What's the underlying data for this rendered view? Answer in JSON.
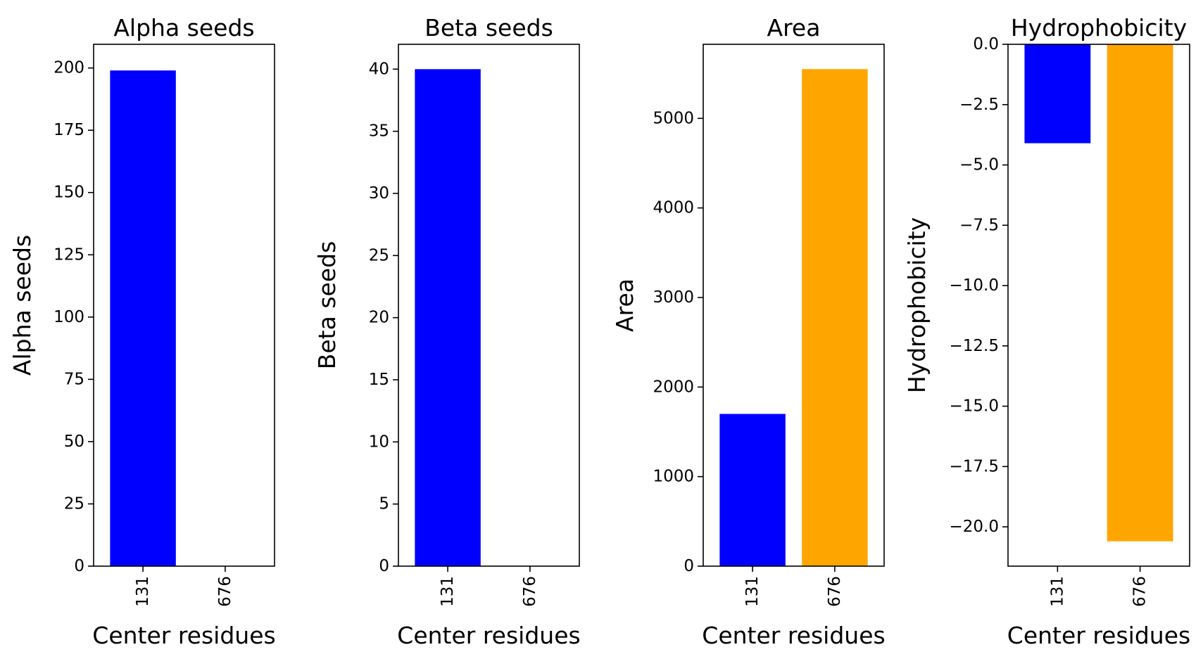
{
  "colors": {
    "131": "#0000ff",
    "676": "#ffa500"
  },
  "chart_data": [
    {
      "type": "bar",
      "title": "Alpha seeds",
      "xlabel": "Center residues",
      "ylabel": "Alpha seeds",
      "categories": [
        "131",
        "676"
      ],
      "values": [
        199,
        0
      ],
      "ylim": [
        0,
        209.5
      ],
      "yticks": [
        0,
        25,
        50,
        75,
        100,
        125,
        150,
        175,
        200
      ],
      "ytick_labels": [
        "0",
        "25",
        "50",
        "75",
        "100",
        "125",
        "150",
        "175",
        "200"
      ],
      "grid": false
    },
    {
      "type": "bar",
      "title": "Beta seeds",
      "xlabel": "Center residues",
      "ylabel": "Beta seeds",
      "categories": [
        "131",
        "676"
      ],
      "values": [
        40,
        0
      ],
      "ylim": [
        0,
        42
      ],
      "yticks": [
        0,
        5,
        10,
        15,
        20,
        25,
        30,
        35,
        40
      ],
      "ytick_labels": [
        "0",
        "5",
        "10",
        "15",
        "20",
        "25",
        "30",
        "35",
        "40"
      ],
      "grid": false
    },
    {
      "type": "bar",
      "title": "Area",
      "xlabel": "Center residues",
      "ylabel": "Area",
      "categories": [
        "131",
        "676"
      ],
      "values": [
        1700,
        5550
      ],
      "ylim": [
        0,
        5827
      ],
      "yticks": [
        0,
        1000,
        2000,
        3000,
        4000,
        5000
      ],
      "ytick_labels": [
        "0",
        "1000",
        "2000",
        "3000",
        "4000",
        "5000"
      ],
      "grid": false
    },
    {
      "type": "bar",
      "title": "Hydrophobicity",
      "xlabel": "Center residues",
      "ylabel": "Hydrophobicity",
      "categories": [
        "131",
        "676"
      ],
      "values": [
        -4.1,
        -20.6
      ],
      "ylim": [
        -21.63,
        0
      ],
      "yticks": [
        0,
        -2.5,
        -5,
        -7.5,
        -10,
        -12.5,
        -15,
        -17.5,
        -20
      ],
      "ytick_labels": [
        "0.0",
        "−2.5",
        "−5.0",
        "−7.5",
        "−10.0",
        "−12.5",
        "−15.0",
        "−17.5",
        "−20.0"
      ],
      "grid": false
    }
  ]
}
